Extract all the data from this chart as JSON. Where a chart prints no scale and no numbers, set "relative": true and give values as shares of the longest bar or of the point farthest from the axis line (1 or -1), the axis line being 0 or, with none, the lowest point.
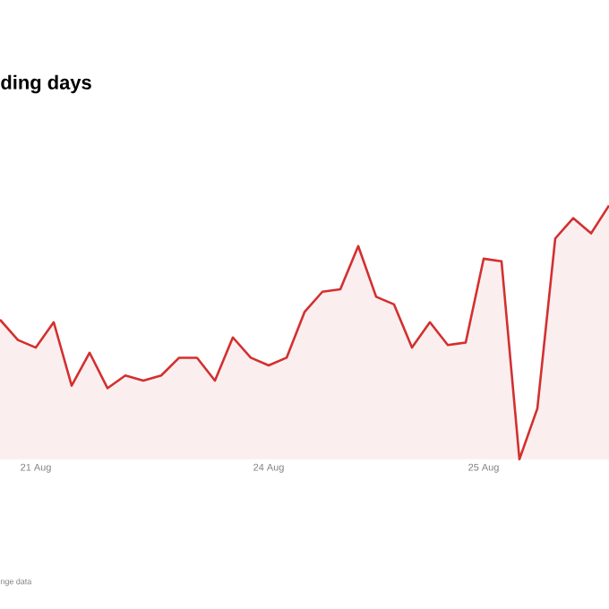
{
  "chart_data": {
    "type": "area",
    "title": "ding days",
    "annotations": [
      "nge data"
    ],
    "relative": true,
    "color": "#d32f2f",
    "categories": [
      null,
      null,
      "21 Aug",
      null,
      null,
      null,
      null,
      null,
      null,
      null,
      null,
      null,
      null,
      null,
      null,
      "24 Aug",
      null,
      null,
      null,
      null,
      null,
      null,
      null,
      null,
      null,
      null,
      null,
      "25 Aug",
      null,
      null,
      null,
      null,
      null,
      null,
      null
    ],
    "values": [
      0.55,
      0.47,
      0.44,
      0.54,
      0.29,
      0.42,
      0.28,
      0.33,
      0.31,
      0.33,
      0.4,
      0.4,
      0.31,
      0.48,
      0.4,
      0.37,
      0.4,
      0.58,
      0.66,
      0.67,
      0.84,
      0.64,
      0.61,
      0.44,
      0.54,
      0.45,
      0.46,
      0.79,
      0.78,
      0.0,
      0.2,
      0.87,
      0.95,
      0.89,
      1.0
    ]
  }
}
